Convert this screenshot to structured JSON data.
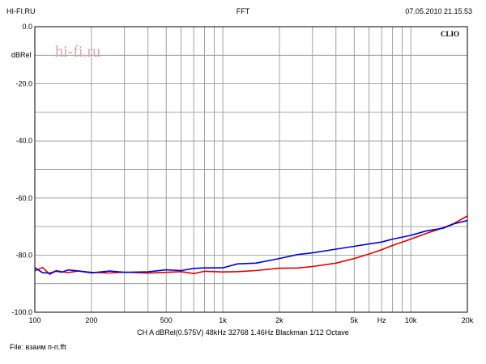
{
  "header": {
    "left": "HI-FI.RU",
    "center": "FFT",
    "right": "07.05.2010 21.15.53"
  },
  "watermark": "hi-fi.ru",
  "brand": "CLIO",
  "footer": {
    "settings": "CH A  dBRel(0.575V)  48kHz  32768  1.46Hz  Blackman  1/12 Octave",
    "file": "File: взаим п-п.fft"
  },
  "chart_data": {
    "type": "line",
    "title": "FFT",
    "xlabel": "Hz",
    "ylabel": "dBRel",
    "xscale": "log",
    "xlim": [
      100,
      20000
    ],
    "ylim": [
      -100,
      0
    ],
    "grid": true,
    "y_ticks": [
      {
        "value": 0,
        "label": "0.0"
      },
      {
        "value": -20,
        "label": "-20.0"
      },
      {
        "value": -40,
        "label": "-40.0"
      },
      {
        "value": -60,
        "label": "-60.0"
      },
      {
        "value": -80,
        "label": "-80.0"
      },
      {
        "value": -100,
        "label": "-100.0"
      }
    ],
    "x_ticks": [
      {
        "value": 100,
        "label": "100"
      },
      {
        "value": 200,
        "label": "200"
      },
      {
        "value": 500,
        "label": "500"
      },
      {
        "value": 1000,
        "label": "1k"
      },
      {
        "value": 2000,
        "label": "2k"
      },
      {
        "value": 5000,
        "label": "5k"
      },
      {
        "value": 10000,
        "label": "10k"
      },
      {
        "value": 20000,
        "label": "20k"
      }
    ],
    "x_unit_label": {
      "value": 7000,
      "label": "Hz"
    },
    "series": [
      {
        "color": "#e00000",
        "x": [
          100,
          110,
          120,
          130,
          140,
          150,
          170,
          200,
          250,
          300,
          400,
          500,
          600,
          700,
          800,
          1000,
          1200,
          1500,
          2000,
          2500,
          3000,
          4000,
          5000,
          6000,
          7000,
          8000,
          10000,
          12000,
          15000,
          17000,
          20000
        ],
        "y": [
          -85.5,
          -84.6,
          -86.4,
          -85.6,
          -85.9,
          -85.8,
          -85.9,
          -85.9,
          -86.1,
          -86.3,
          -86.0,
          -86.1,
          -86.0,
          -86.1,
          -85.9,
          -85.9,
          -85.5,
          -85.4,
          -84.6,
          -84.5,
          -84.0,
          -82.8,
          -81.2,
          -79.6,
          -78.1,
          -76.6,
          -74.4,
          -72.5,
          -70.3,
          -68.9,
          -66.3
        ]
      },
      {
        "color": "#0000e0",
        "x": [
          100,
          110,
          120,
          130,
          140,
          150,
          170,
          200,
          250,
          300,
          400,
          500,
          600,
          700,
          800,
          1000,
          1200,
          1500,
          2000,
          2500,
          3000,
          4000,
          5000,
          6000,
          7000,
          8000,
          10000,
          12000,
          15000,
          17000,
          20000
        ],
        "y": [
          -84.4,
          -85.9,
          -86.3,
          -85.9,
          -85.6,
          -85.4,
          -85.6,
          -85.9,
          -85.9,
          -85.9,
          -85.7,
          -85.5,
          -85.1,
          -84.7,
          -84.7,
          -84.1,
          -83.3,
          -82.8,
          -81.2,
          -79.8,
          -79.2,
          -77.9,
          -76.9,
          -76.1,
          -75.4,
          -74.4,
          -73.1,
          -71.6,
          -70.5,
          -69.0,
          -67.9
        ]
      }
    ]
  }
}
